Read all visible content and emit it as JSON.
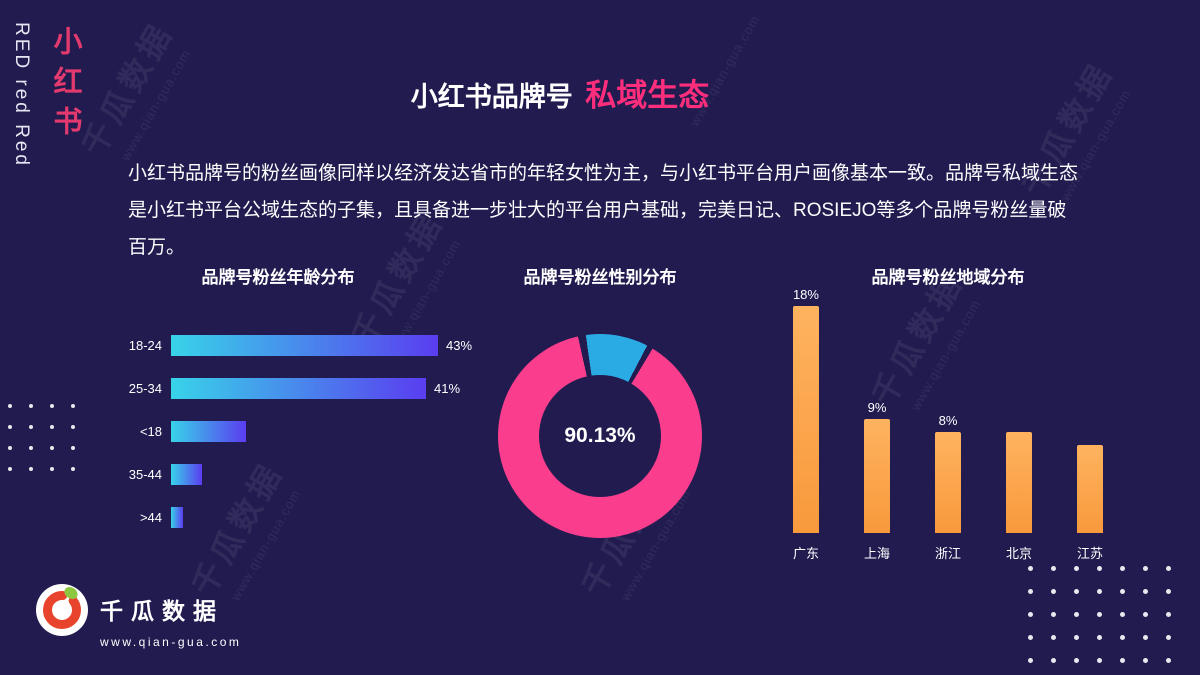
{
  "page": {
    "bg": "#211b4f",
    "accent_pink": "#ff2e7d"
  },
  "sidebar": {
    "cn": "小红书",
    "en": "RED red Red"
  },
  "header": {
    "title_main": "小红书品牌号",
    "title_accent": "私域生态",
    "paragraph": "小红书品牌号的粉丝画像同样以经济发达省市的年轻女性为主，与小红书平台用户画像基本一致。品牌号私域生态是小红书平台公域生态的子集，且具备进一步壮大的平台用户基础，完美日记、ROSIEJO等多个品牌号粉丝量破百万。"
  },
  "chart_data": [
    {
      "type": "bar",
      "orientation": "horizontal",
      "title": "品牌号粉丝年龄分布",
      "categories": [
        "18-24",
        "25-34",
        "<18",
        "35-44",
        ">44"
      ],
      "values": [
        43,
        41,
        12,
        5,
        2
      ],
      "value_labels": [
        "43%",
        "41%",
        "",
        "",
        ""
      ],
      "xlim": [
        0,
        43
      ],
      "bar_gradient": [
        "#38d3e9",
        "#5a3df0"
      ]
    },
    {
      "type": "pie",
      "title": "品牌号粉丝性别分布",
      "values": [
        90.13,
        9.87
      ],
      "colors": [
        "#fa3d8c",
        "#2aabe4"
      ],
      "center_label": "90.13%"
    },
    {
      "type": "bar",
      "orientation": "vertical",
      "title": "品牌号粉丝地域分布",
      "categories": [
        "广东",
        "上海",
        "浙江",
        "北京",
        "江苏"
      ],
      "values": [
        18,
        9,
        8,
        8,
        7
      ],
      "value_labels": [
        "18%",
        "9%",
        "8%",
        "",
        ""
      ],
      "ylim": [
        0,
        18
      ],
      "bar_gradient": [
        "#ffb35f",
        "#f8993c"
      ]
    }
  ],
  "footer": {
    "brand": "千瓜数据",
    "url": "www.qian-gua.com"
  },
  "watermark": {
    "brand": "千瓜数据",
    "url": "www.qian-gua.com"
  }
}
